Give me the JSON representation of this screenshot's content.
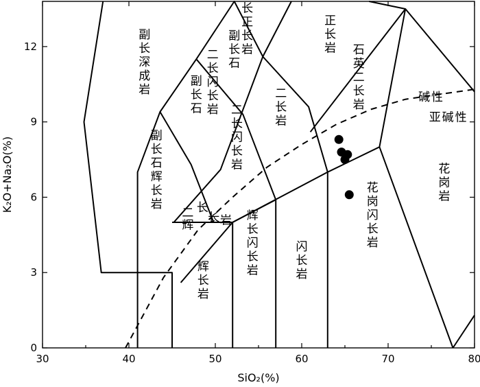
{
  "chart_data": {
    "type": "scatter",
    "title": "",
    "xlabel": "SiO₂(%)",
    "ylabel": "K₂O+Na₂O(%)",
    "xlim": [
      30,
      80
    ],
    "ylim": [
      0,
      13.8
    ],
    "x_ticks": [
      30,
      40,
      50,
      60,
      70,
      80
    ],
    "y_ticks": [
      0,
      3,
      6,
      9,
      12
    ],
    "grid": false,
    "legend": "none",
    "series": [
      {
        "points": [
          {
            "x": 64.3,
            "y": 8.3
          },
          {
            "x": 64.6,
            "y": 7.8
          },
          {
            "x": 65.3,
            "y": 7.7
          },
          {
            "x": 65.0,
            "y": 7.5
          },
          {
            "x": 65.5,
            "y": 6.1
          }
        ]
      }
    ],
    "boundaries": [
      [
        [
          37.0,
          13.8
        ],
        [
          34.8,
          9.0
        ],
        [
          36.8,
          3.0
        ],
        [
          45.0,
          3.0
        ],
        [
          45.0,
          0
        ]
      ],
      [
        [
          41.0,
          0
        ],
        [
          41.0,
          7.0
        ],
        [
          43.6,
          9.4
        ],
        [
          47.8,
          11.5
        ],
        [
          52.2,
          13.8
        ],
        [
          55.5,
          11.6
        ],
        [
          50.6,
          7.1
        ],
        [
          45.2,
          5.0
        ]
      ],
      [
        [
          52.0,
          0
        ],
        [
          52.0,
          5.0
        ],
        [
          45.0,
          5.0
        ]
      ],
      [
        [
          57.0,
          0
        ],
        [
          57.0,
          5.9
        ],
        [
          53.2,
          9.3
        ],
        [
          47.8,
          11.5
        ]
      ],
      [
        [
          43.6,
          9.4
        ],
        [
          47.2,
          7.3
        ],
        [
          49.8,
          5.0
        ]
      ],
      [
        [
          63.0,
          0
        ],
        [
          63.0,
          7.0
        ],
        [
          60.8,
          9.6
        ],
        [
          55.5,
          11.6
        ]
      ],
      [
        [
          52.0,
          5.0
        ],
        [
          63.0,
          7.0
        ],
        [
          69.0,
          8.0
        ],
        [
          77.5,
          0
        ]
      ],
      [
        [
          61.0,
          8.6
        ],
        [
          72.0,
          13.5
        ],
        [
          80.0,
          10.2
        ]
      ],
      [
        [
          72.0,
          13.5
        ],
        [
          69.0,
          8.0
        ]
      ],
      [
        [
          58.8,
          13.8
        ],
        [
          55.5,
          11.6
        ]
      ],
      [
        [
          67.8,
          13.8
        ],
        [
          72.0,
          13.5
        ]
      ],
      [
        [
          77.5,
          0
        ],
        [
          80.0,
          1.3
        ]
      ],
      [
        [
          47.5,
          5.0
        ],
        [
          52.0,
          5.0
        ]
      ],
      [
        [
          46.0,
          2.6
        ],
        [
          52.0,
          5.0
        ],
        [
          57.0,
          5.9
        ]
      ]
    ],
    "alkaline_line": [
      [
        39.6,
        0
      ],
      [
        44.0,
        2.8
      ],
      [
        48.0,
        4.7
      ],
      [
        52.0,
        6.0
      ],
      [
        56.0,
        7.2
      ],
      [
        60.0,
        8.1
      ],
      [
        64.0,
        8.9
      ],
      [
        68.0,
        9.5
      ],
      [
        72.0,
        9.9
      ],
      [
        76.0,
        10.1
      ],
      [
        80.0,
        10.3
      ]
    ],
    "field_labels": [
      {
        "text": "副长深成岩",
        "x": 41.8,
        "y": 11.4,
        "vertical": true
      },
      {
        "text": "二长正长岩",
        "x": 53.7,
        "y": 13.0,
        "vertical": true
      },
      {
        "text": "副长石",
        "x": 52.2,
        "y": 11.9,
        "vertical": true
      },
      {
        "text": "正长岩",
        "x": 63.3,
        "y": 12.5,
        "vertical": true
      },
      {
        "text": "二长闪长岩",
        "x": 49.7,
        "y": 10.6,
        "vertical": true
      },
      {
        "text": "副长石",
        "x": 47.8,
        "y": 10.1,
        "vertical": true
      },
      {
        "text": "二长岩",
        "x": 57.6,
        "y": 9.6,
        "vertical": true
      },
      {
        "text": "石英二长岩",
        "x": 66.6,
        "y": 10.8,
        "vertical": true
      },
      {
        "text": "碱性",
        "x": 75.0,
        "y": 10.0,
        "vertical": false
      },
      {
        "text": "亚碱性",
        "x": 77.0,
        "y": 9.2,
        "vertical": false
      },
      {
        "text": "二长闪长岩",
        "x": 52.5,
        "y": 8.4,
        "vertical": true
      },
      {
        "text": "副长石辉长岩",
        "x": 43.2,
        "y": 7.1,
        "vertical": true
      },
      {
        "text": "长",
        "x": 48.6,
        "y": 5.6,
        "vertical": false
      },
      {
        "text": "二",
        "x": 46.9,
        "y": 5.4,
        "vertical": false
      },
      {
        "text": "长",
        "x": 49.9,
        "y": 5.2,
        "vertical": false
      },
      {
        "text": "岩",
        "x": 51.3,
        "y": 5.1,
        "vertical": false
      },
      {
        "text": "辉",
        "x": 46.9,
        "y": 4.9,
        "vertical": false
      },
      {
        "text": "花岗岩",
        "x": 76.5,
        "y": 6.6,
        "vertical": true
      },
      {
        "text": "花岗闪长岩",
        "x": 68.2,
        "y": 5.3,
        "vertical": true
      },
      {
        "text": "辉长闪长岩",
        "x": 54.3,
        "y": 4.2,
        "vertical": true
      },
      {
        "text": "闪长岩",
        "x": 60.0,
        "y": 3.5,
        "vertical": true
      },
      {
        "text": "辉长岩",
        "x": 48.6,
        "y": 2.7,
        "vertical": true
      }
    ]
  }
}
